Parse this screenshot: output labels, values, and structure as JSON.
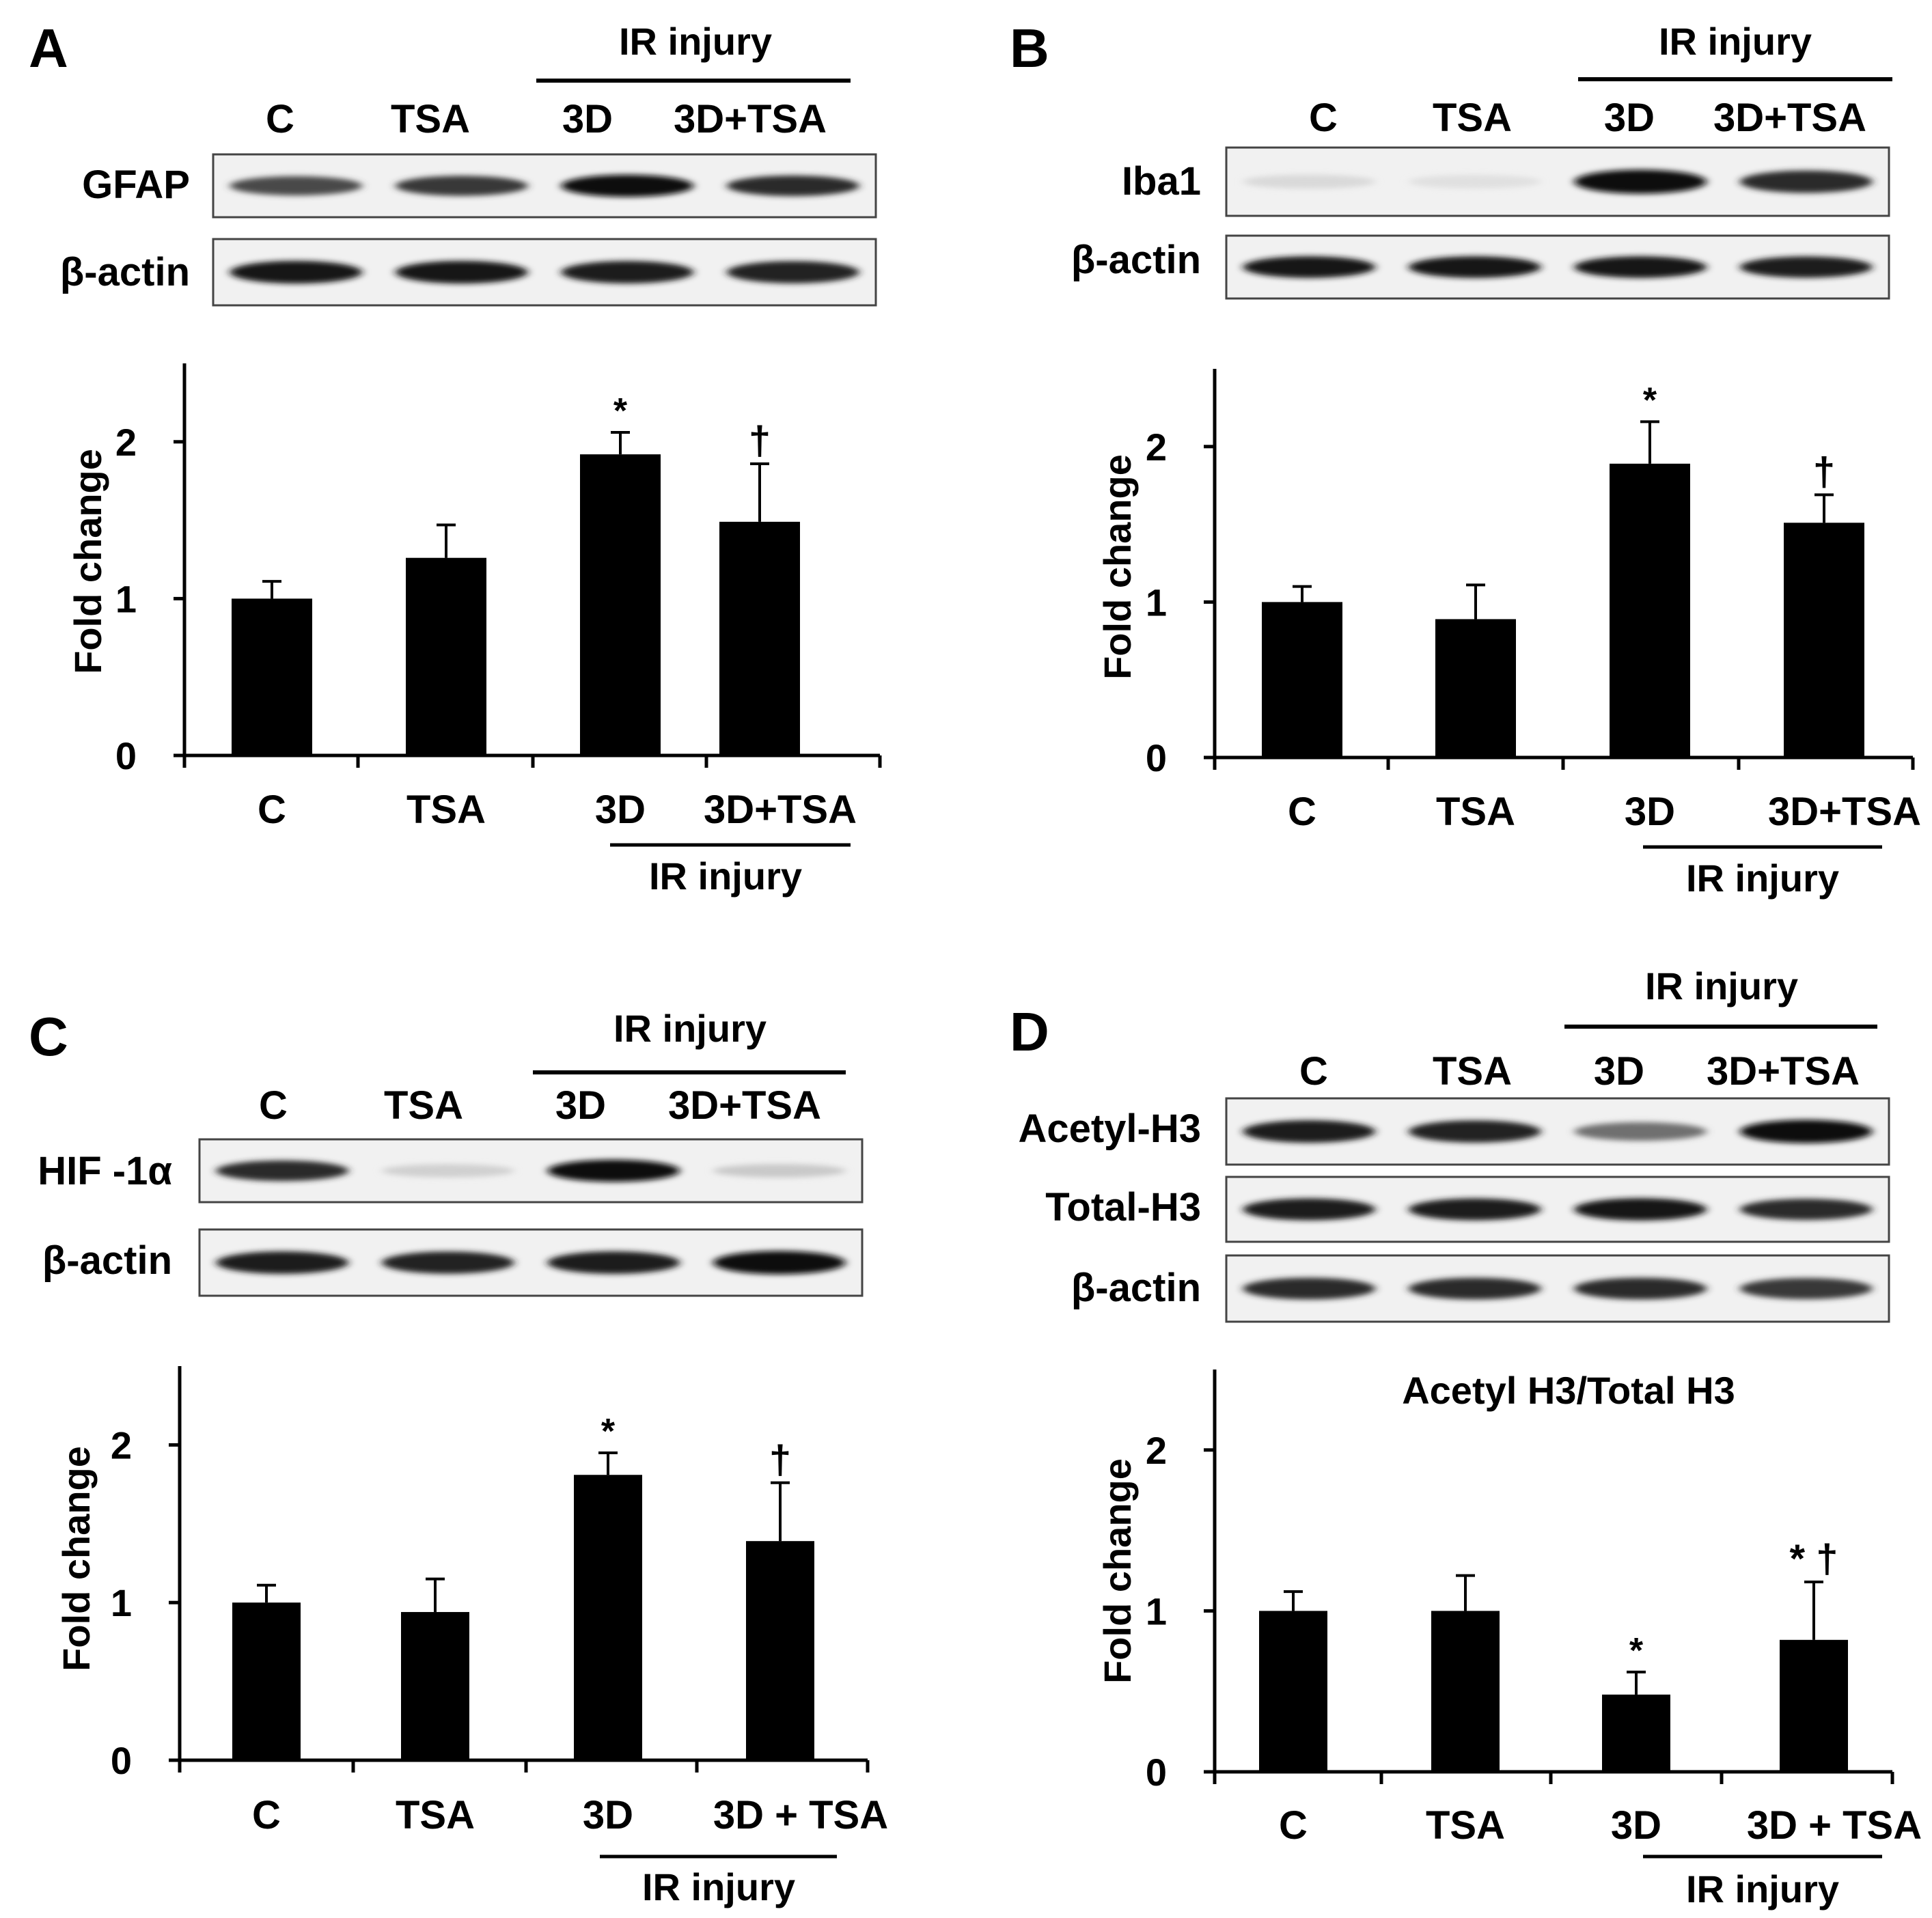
{
  "panels": [
    {
      "letter": "A",
      "ir_label": "IR injury",
      "blot_lanes": [
        "C",
        "TSA",
        "3D",
        "3D+TSA"
      ],
      "blots": [
        {
          "label": "GFAP",
          "bands": [
            0.72,
            0.8,
            1.0,
            0.85
          ]
        },
        {
          "label": "β-actin",
          "bands": [
            0.95,
            0.95,
            0.92,
            0.9
          ]
        }
      ]
    },
    {
      "letter": "B",
      "ir_label": "IR injury",
      "blot_lanes": [
        "C",
        "TSA",
        "3D",
        "3D+TSA"
      ],
      "blots": [
        {
          "label": "Iba1",
          "bands": [
            0.08,
            0.05,
            1.0,
            0.85
          ]
        },
        {
          "label": "β-actin",
          "bands": [
            0.95,
            0.95,
            0.95,
            0.92
          ]
        }
      ]
    },
    {
      "letter": "C",
      "ir_label": "IR injury",
      "blot_lanes": [
        "C",
        "TSA",
        "3D",
        "3D+TSA"
      ],
      "blots": [
        {
          "label": "HIF -1α",
          "bands": [
            0.85,
            0.12,
            1.0,
            0.15
          ]
        },
        {
          "label": "β-actin",
          "bands": [
            0.92,
            0.9,
            0.92,
            1.0
          ]
        }
      ]
    },
    {
      "letter": "D",
      "ir_label": "IR injury",
      "blot_lanes": [
        "C",
        "TSA",
        "3D",
        "3D+TSA"
      ],
      "blots": [
        {
          "label": "Acetyl-H3",
          "bands": [
            0.92,
            0.9,
            0.55,
            1.0
          ]
        },
        {
          "label": "Total-H3",
          "bands": [
            0.92,
            0.92,
            0.95,
            0.85
          ]
        },
        {
          "label": "β-actin",
          "bands": [
            0.85,
            0.85,
            0.85,
            0.8
          ]
        }
      ]
    }
  ],
  "chart_data": [
    {
      "type": "bar",
      "panel": "A",
      "title": "",
      "ylabel": "Fold change",
      "xlabel": "",
      "categories": [
        "C",
        "TSA",
        "3D",
        "3D+TSA"
      ],
      "group_label": "IR injury",
      "values": [
        1.0,
        1.26,
        1.92,
        1.49
      ],
      "errors": [
        0.11,
        0.21,
        0.14,
        0.37
      ],
      "annotations": [
        "",
        "",
        "*",
        "†"
      ],
      "ylim": [
        0,
        2.5
      ],
      "yticks": [
        0,
        1,
        2
      ],
      "bar_color": "#000000"
    },
    {
      "type": "bar",
      "panel": "B",
      "title": "",
      "ylabel": "Fold change",
      "xlabel": "",
      "categories": [
        "C",
        "TSA",
        "3D",
        "3D+TSA"
      ],
      "group_label": "IR injury",
      "values": [
        1.0,
        0.89,
        1.89,
        1.51
      ],
      "errors": [
        0.1,
        0.22,
        0.27,
        0.18
      ],
      "annotations": [
        "",
        "",
        "*",
        "†"
      ],
      "ylim": [
        0,
        2.5
      ],
      "yticks": [
        0,
        1,
        2
      ],
      "bar_color": "#000000"
    },
    {
      "type": "bar",
      "panel": "C",
      "title": "",
      "ylabel": "Fold change",
      "xlabel": "",
      "categories": [
        "C",
        "TSA",
        "3D",
        "3D + TSA"
      ],
      "group_label": "IR injury",
      "values": [
        1.0,
        0.94,
        1.81,
        1.39
      ],
      "errors": [
        0.11,
        0.21,
        0.14,
        0.37
      ],
      "annotations": [
        "",
        "",
        "*",
        "†"
      ],
      "ylim": [
        0,
        2.5
      ],
      "yticks": [
        0,
        1,
        2
      ],
      "bar_color": "#000000"
    },
    {
      "type": "bar",
      "panel": "D",
      "title": "Acetyl H3/Total H3",
      "ylabel": "Fold change",
      "xlabel": "",
      "categories": [
        "C",
        "TSA",
        "3D",
        "3D + TSA"
      ],
      "group_label": "IR injury",
      "values": [
        1.0,
        1.0,
        0.48,
        0.82
      ],
      "errors": [
        0.12,
        0.22,
        0.14,
        0.36
      ],
      "annotations": [
        "",
        "",
        "*",
        "* †"
      ],
      "ylim": [
        0,
        2.5
      ],
      "yticks": [
        0,
        1,
        2
      ],
      "bar_color": "#000000"
    }
  ]
}
